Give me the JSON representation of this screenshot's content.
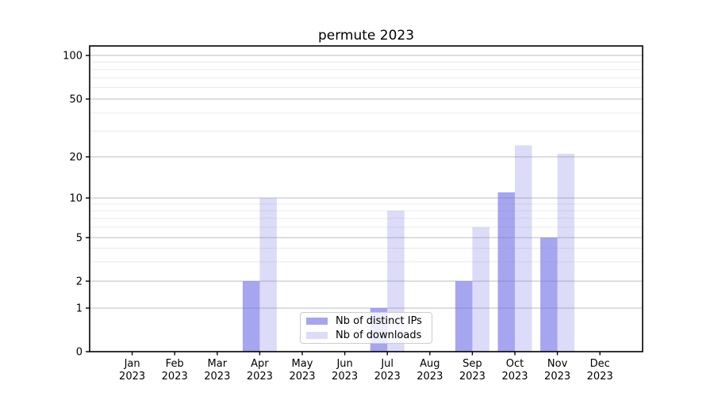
{
  "title": "permute 2023",
  "chart_data": {
    "type": "bar",
    "title": "permute 2023",
    "categories": [
      "Jan",
      "Feb",
      "Mar",
      "Apr",
      "May",
      "Jun",
      "Jul",
      "Aug",
      "Sep",
      "Oct",
      "Nov",
      "Dec"
    ],
    "category_year": "2023",
    "series": [
      {
        "name": "Nb of distinct IPs",
        "base_color": "#7575e8",
        "alpha": 0.65,
        "appears_as": "#a5a5f0",
        "values": [
          0,
          0,
          0,
          2,
          0,
          0,
          1,
          0,
          2,
          11,
          5,
          0
        ]
      },
      {
        "name": "Nb of downloads",
        "base_color": "#7575e8",
        "alpha": 0.25,
        "appears_as": "#dcdcf9",
        "values": [
          0,
          0,
          0,
          10,
          0,
          0,
          8,
          0,
          6,
          24,
          21,
          0
        ]
      }
    ],
    "yscale": "symlog",
    "yticks": [
      0,
      1,
      2,
      5,
      10,
      20,
      50,
      100
    ],
    "minor_yticks": [
      3,
      4,
      6,
      7,
      8,
      9,
      30,
      40,
      60,
      70,
      80,
      90
    ],
    "ylim": [
      0,
      117
    ],
    "xlabel": "",
    "ylabel": "",
    "grid": true,
    "grid_major_color": "#bdbdbd",
    "grid_minor_color": "#eaeaea",
    "spine_color": "#000000",
    "legend_position": "lower center"
  }
}
